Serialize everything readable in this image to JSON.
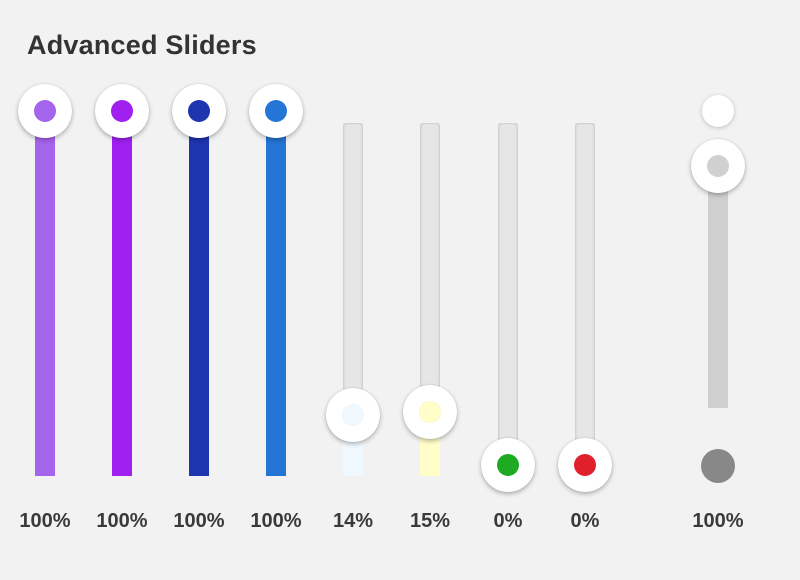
{
  "title": "Advanced Sliders",
  "sliders": [
    {
      "label": "100%",
      "value": 100,
      "color": "#a564ec",
      "name": "slider-1"
    },
    {
      "label": "100%",
      "value": 100,
      "color": "#a020f0",
      "name": "slider-2"
    },
    {
      "label": "100%",
      "value": 100,
      "color": "#1e35b0",
      "name": "slider-3"
    },
    {
      "label": "100%",
      "value": 100,
      "color": "#2475d6",
      "name": "slider-4"
    },
    {
      "label": "14%",
      "value": 14,
      "color": "#f0f8ff",
      "name": "slider-5"
    },
    {
      "label": "15%",
      "value": 15,
      "color": "#fffdc8",
      "name": "slider-6"
    },
    {
      "label": "0%",
      "value": 0,
      "color": "#1faa24",
      "name": "slider-7"
    },
    {
      "label": "0%",
      "value": 0,
      "color": "#e0202a",
      "name": "slider-8"
    }
  ],
  "special_slider": {
    "label": "100%",
    "value": 100,
    "track_color": "#cfcfcf",
    "thumb_dot_color": "#d0d0d0",
    "bottom_handle_color": "#888888"
  }
}
